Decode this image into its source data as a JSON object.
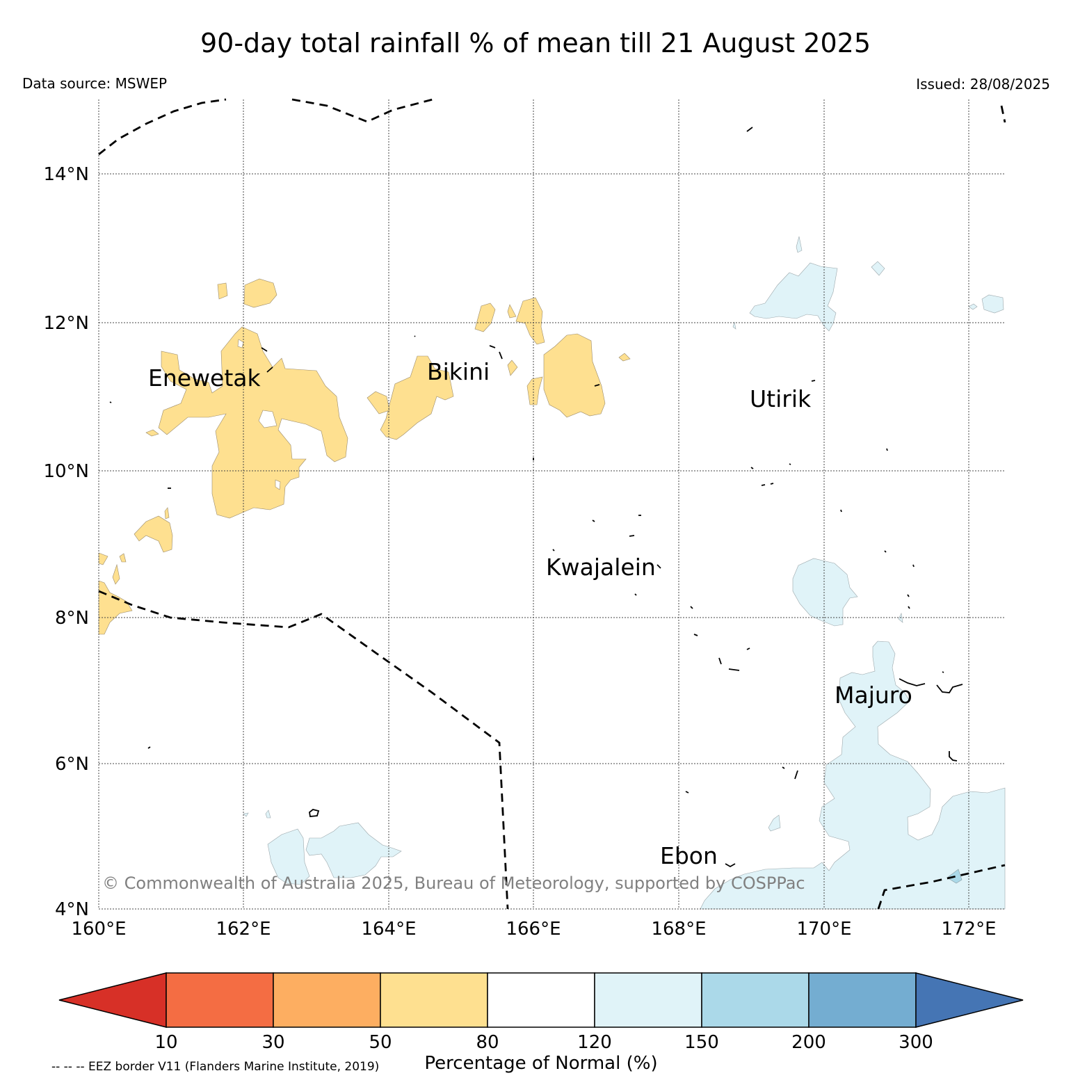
{
  "title": "90-day total rainfall % of mean till 21 August 2025",
  "data_source": "Data source: MSWEP",
  "issued": "Issued: 28/08/2025",
  "copyright": "© Commonwealth of Australia 2025, Bureau of Meteorology, supported by COSPPac",
  "eez_note": "-- -- -- EEZ border V11 (Flanders Marine Institute, 2019)",
  "map": {
    "lon_labels": [
      "160°E",
      "162°E",
      "164°E",
      "166°E",
      "168°E",
      "170°E",
      "172°E"
    ],
    "lat_labels": [
      "14°N",
      "12°N",
      "10°N",
      "8°N",
      "6°N",
      "4°N"
    ],
    "places": {
      "enewetak": "Enewetak",
      "bikini": "Bikini",
      "utirik": "Utirik",
      "kwajalein": "Kwajalein",
      "majuro": "Majuro",
      "ebon": "Ebon"
    }
  },
  "colorbar": {
    "title": "Percentage of Normal (%)",
    "ticks": [
      "10",
      "30",
      "50",
      "80",
      "120",
      "150",
      "200",
      "300"
    ],
    "colors": [
      "#d73027",
      "#f46d43",
      "#fdae61",
      "#fee090",
      "#ffffff",
      "#e0f3f8",
      "#abd9e9",
      "#74add1",
      "#4575b4"
    ]
  },
  "legend_colors": {
    "dry_80": "#fee090",
    "wet_150": "#e0f3f8",
    "wet_200": "#abd9e9"
  }
}
